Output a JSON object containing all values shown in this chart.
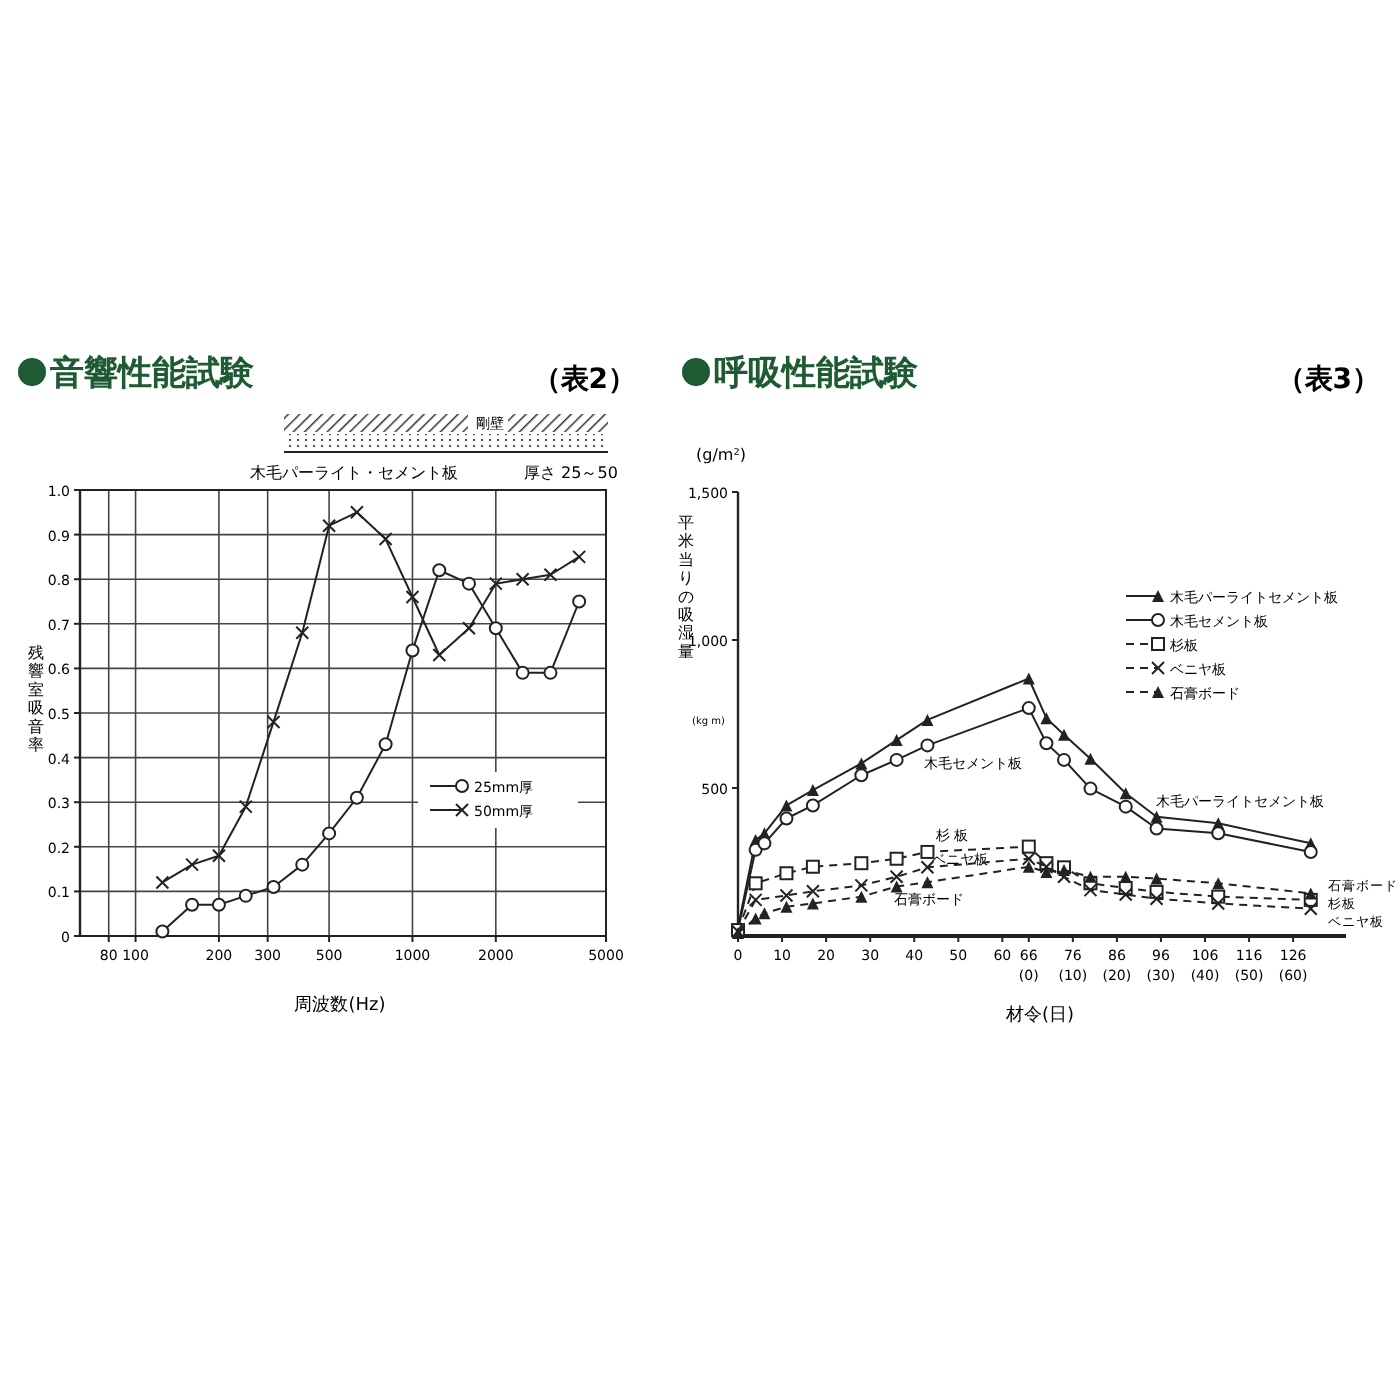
{
  "chart_data": [
    {
      "type": "line",
      "title": "音響性能試験",
      "xlabel": "周波数(Hz)",
      "ylabel": "残響室吸音率",
      "log": "x",
      "grid": true,
      "legend": "right",
      "line_style": "solid",
      "xlim": [
        63,
        5000
      ],
      "xticks": [
        80,
        100,
        200,
        300,
        500,
        1000,
        2000,
        5000
      ],
      "ylim": [
        0,
        1
      ],
      "yticks": [
        0,
        0.1,
        0.2,
        0.3,
        0.4,
        0.5,
        0.6,
        0.7,
        0.8,
        0.9,
        {
          "value": 1,
          "label": "1.0"
        }
      ],
      "x": [
        125,
        160,
        200,
        250,
        315,
        400,
        500,
        630,
        800,
        1000,
        1250,
        1600,
        2000,
        2500,
        3150,
        4000
      ],
      "annotations": [
        "（表2）",
        "剛壁",
        "木毛パーライト・セメント板",
        "厚さ 25～50"
      ],
      "series": [
        {
          "name": "25mm厚",
          "color": "#222222",
          "marker": "circle",
          "values": [
            0.01,
            0.07,
            0.07,
            0.09,
            0.11,
            0.16,
            0.23,
            0.31,
            0.43,
            0.64,
            0.82,
            0.79,
            0.69,
            0.59,
            0.59,
            0.75
          ]
        },
        {
          "name": "50mm厚",
          "color": "#222222",
          "marker": "cross",
          "values": [
            0.12,
            0.16,
            0.18,
            0.29,
            0.48,
            0.68,
            0.92,
            0.95,
            0.89,
            0.76,
            0.63,
            0.69,
            0.79,
            0.8,
            0.81,
            0.85
          ]
        }
      ]
    },
    {
      "type": "line",
      "title": "呼吸性能試験",
      "xlabel": "材令(日)",
      "ylabel": "平米当りの吸湿量",
      "grid": false,
      "legend": "top right",
      "xlim": [
        0,
        138
      ],
      "xticks": [
        0,
        10,
        20,
        30,
        40,
        50,
        60,
        {
          "value": 66,
          "label": "66\n(0)"
        },
        {
          "value": 76,
          "label": "76\n(10)"
        },
        {
          "value": 86,
          "label": "86\n(20)"
        },
        {
          "value": 96,
          "label": "96\n(30)"
        },
        {
          "value": 106,
          "label": "106\n(40)"
        },
        {
          "value": 116,
          "label": "116\n(50)"
        },
        {
          "value": 126,
          "label": "126\n(60)"
        }
      ],
      "ylim": [
        0,
        1500
      ],
      "yticks": [
        {
          "value": 0,
          "label": null
        },
        500,
        {
          "value": 1000,
          "label": "1,000"
        },
        {
          "value": 1500,
          "label": "1,500"
        }
      ],
      "x": [
        0,
        4,
        6,
        11,
        17,
        28,
        36,
        43,
        66,
        70,
        74,
        80,
        88,
        95,
        109,
        130
      ],
      "annotations": [
        "（表3）",
        "(g/m²)",
        "(kg m)",
        "木毛セメント板",
        "木毛パーライトセメント板",
        "杉 板",
        "ベニヤ板",
        "石膏ボード",
        "石膏ボード",
        "杉板",
        "ベニヤ板"
      ],
      "series": [
        {
          "name": "木毛パーライトセメント板",
          "color": "#222222",
          "marker": "triangle",
          "line_style": "solid",
          "values": [
            30,
            324,
            347,
            441,
            493,
            583,
            662,
            730,
            870,
            736,
            680,
            599,
            482,
            403,
            381,
            313
          ]
        },
        {
          "name": "木毛セメント板",
          "color": "#222222",
          "marker": "circle",
          "line_style": "solid",
          "values": [
            20,
            291,
            313,
            397,
            441,
            543,
            595,
            644,
            770,
            651,
            595,
            498,
            437,
            363,
            347,
            284
          ]
        },
        {
          "name": "杉板",
          "color": "#222222",
          "marker": "square",
          "line_style": "dashed",
          "x": [
            0,
            4,
            11,
            17,
            28,
            36,
            43,
            66,
            70,
            74,
            80,
            88,
            95,
            109,
            130
          ],
          "values": [
            20,
            178,
            212,
            234,
            246,
            261,
            284,
            302,
            246,
            232,
            178,
            162,
            149,
            133,
            122
          ]
        },
        {
          "name": "ベニヤ板",
          "color": "#222222",
          "marker": "cross",
          "line_style": "dashed",
          "x": [
            0,
            4,
            11,
            17,
            28,
            36,
            43,
            66,
            70,
            74,
            80,
            88,
            95,
            109,
            130
          ],
          "values": [
            15,
            122,
            137,
            151,
            171,
            200,
            232,
            261,
            234,
            200,
            155,
            140,
            126,
            110,
            92
          ]
        },
        {
          "name": "石膏ボード",
          "color": "#222222",
          "marker": "triangle",
          "line_style": "dashed",
          "values": [
            10,
            59,
            77,
            99,
            110,
            133,
            167,
            182,
            234,
            216,
            223,
            200,
            200,
            194,
            178,
            144
          ]
        }
      ]
    }
  ]
}
